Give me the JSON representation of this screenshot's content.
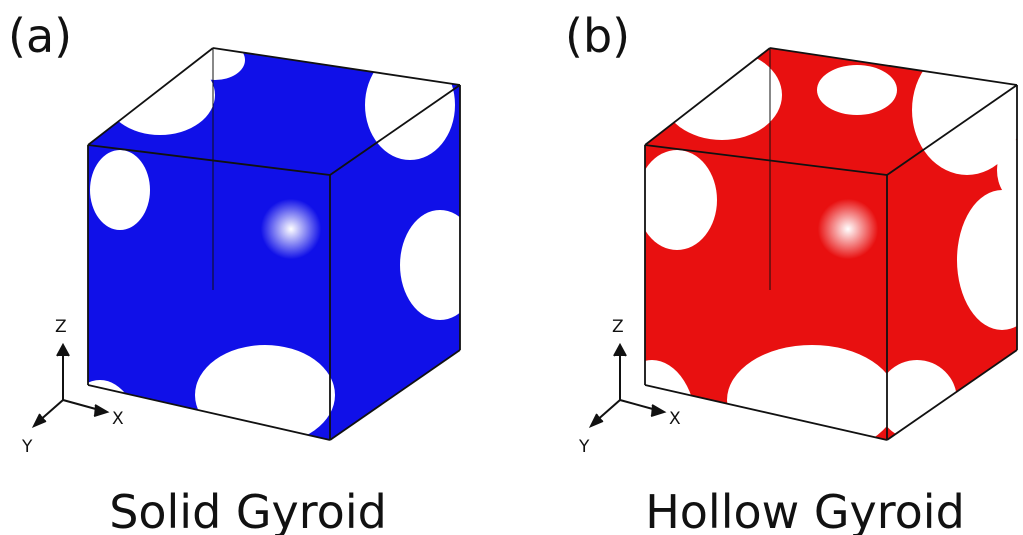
{
  "panels": [
    {
      "label": "(a)",
      "caption": "Solid Gyroid",
      "color": "#1010e8",
      "axes": {
        "z": "Z",
        "x": "X",
        "y": "Y"
      }
    },
    {
      "label": "(b)",
      "caption": "Hollow Gyroid",
      "color": "#e81010",
      "axes": {
        "z": "Z",
        "x": "X",
        "y": "Y"
      }
    }
  ]
}
